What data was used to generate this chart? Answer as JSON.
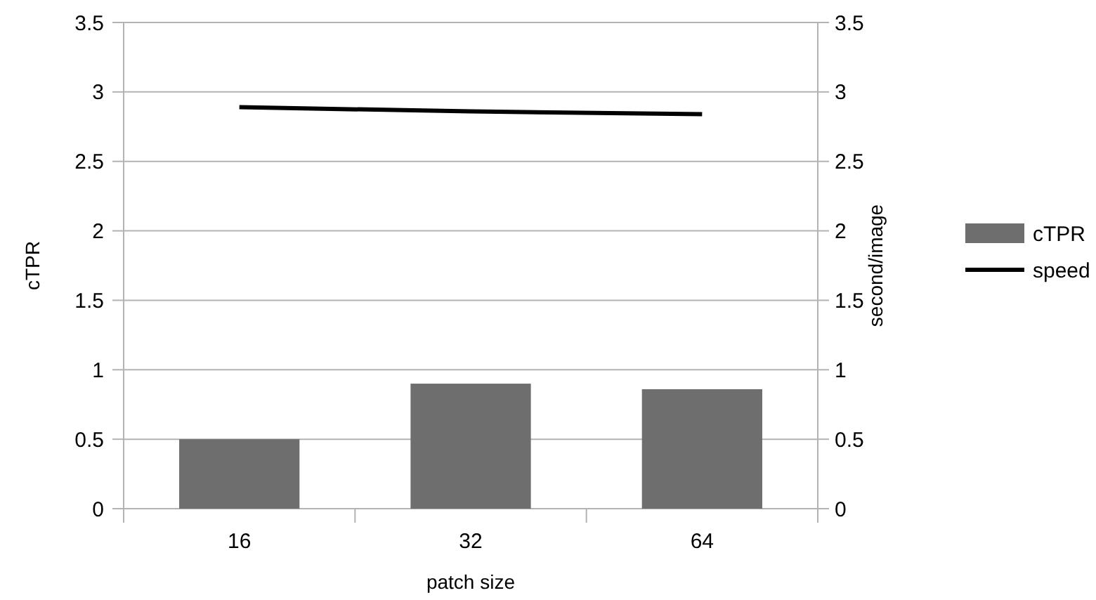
{
  "chart_data": {
    "type": "bar",
    "xlabel": "patch size",
    "ylabel": "cTPR",
    "y2label": "second/image",
    "categories": [
      "16",
      "32",
      "64"
    ],
    "series": [
      {
        "name": "cTPR",
        "color": "#6e6e6e",
        "values": [
          0.5,
          0.9,
          0.86
        ]
      },
      {
        "name": "speed",
        "type": "line",
        "axis": "y2",
        "color": "#000000",
        "values": [
          2.89,
          2.86,
          2.84
        ]
      }
    ],
    "ylim": [
      0,
      3.5
    ],
    "yticks": [
      0,
      0.5,
      1,
      1.5,
      2,
      2.5,
      3,
      3.5
    ],
    "y2lim": [
      0,
      3.5
    ],
    "y2ticks": [
      0,
      0.5,
      1,
      1.5,
      2,
      2.5,
      3,
      3.5
    ],
    "grid": "y",
    "legend": "right",
    "marker": "none",
    "line_style": "solid"
  }
}
